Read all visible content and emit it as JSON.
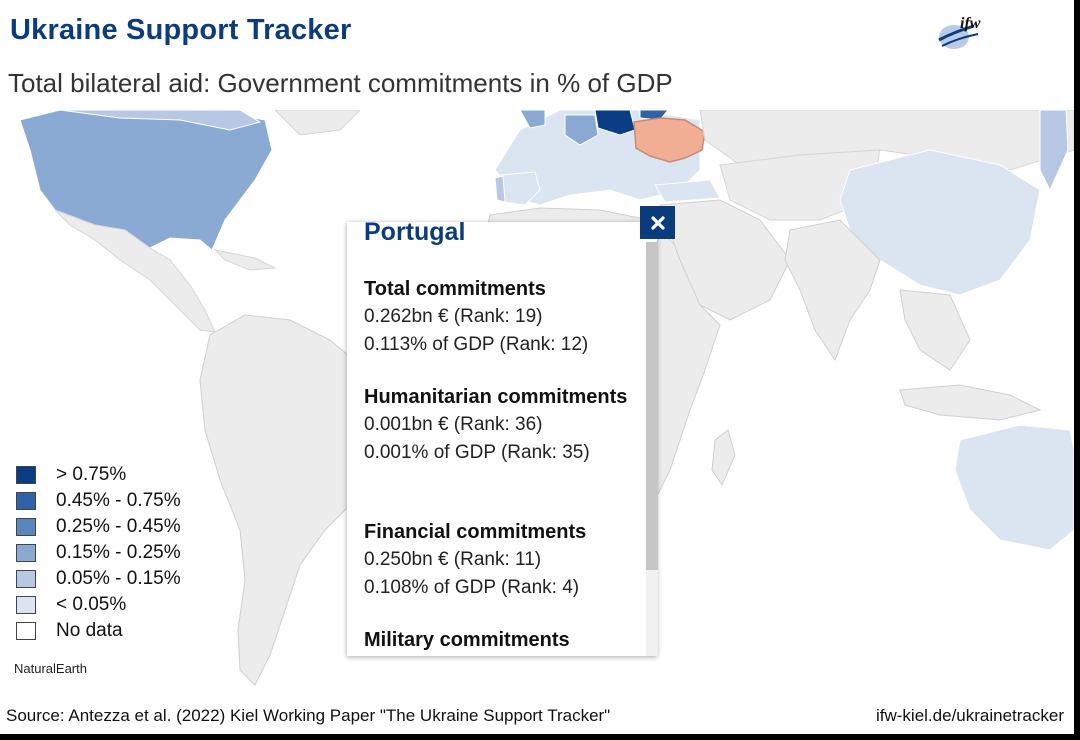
{
  "header": {
    "title": "Ukraine Support Tracker",
    "subtitle": "Total bilateral aid: Government commitments in % of GDP",
    "logo_text": "ifw"
  },
  "colors": {
    "bucket_1": "#0a3d86",
    "bucket_2": "#2f62a6",
    "bucket_3": "#5b86bd",
    "bucket_4": "#8aa9d3",
    "bucket_5": "#b6c8e4",
    "bucket_6": "#dbe4f1",
    "no_data": "#ffffff",
    "land_default": "#ececec",
    "ukraine": "#f1ae94",
    "title": "#0b3d7e"
  },
  "legend": {
    "items": [
      {
        "label": "> 0.75%",
        "color": "#0a3d86"
      },
      {
        "label": "0.45% - 0.75%",
        "color": "#2f62a6"
      },
      {
        "label": "0.25% - 0.45%",
        "color": "#5b86bd"
      },
      {
        "label": "0.15% - 0.25%",
        "color": "#8aa9d3"
      },
      {
        "label": "0.05% - 0.15%",
        "color": "#b6c8e4"
      },
      {
        "label": "< 0.05%",
        "color": "#dbe4f1"
      },
      {
        "label": "No data",
        "color": "#ffffff"
      }
    ]
  },
  "map": {
    "credit": "NaturalEarth"
  },
  "popup": {
    "country": "Portugal",
    "sections": [
      {
        "title": "Total commitments",
        "line1": "0.262bn € (Rank: 19)",
        "line2": "0.113% of GDP (Rank: 12)"
      },
      {
        "title": "Humanitarian commitments",
        "line1": "0.001bn € (Rank: 36)",
        "line2": "0.001% of GDP (Rank: 35)"
      },
      {
        "title": "Financial commitments",
        "line1": "0.250bn € (Rank: 11)",
        "line2": "0.108% of GDP (Rank: 4)"
      },
      {
        "title": "Military commitments",
        "line1": "",
        "line2": ""
      }
    ],
    "close_icon": "close-icon"
  },
  "footer": {
    "source": "Source: Antezza et al. (2022) Kiel Working Paper \"The Ukraine Support Tracker\"",
    "url": "ifw-kiel.de/ukrainetracker"
  }
}
